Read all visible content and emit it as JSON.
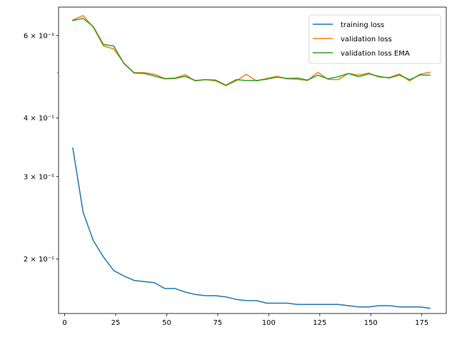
{
  "chart_data": {
    "type": "line",
    "title": "",
    "xlabel": "",
    "ylabel": "",
    "yscale": "log",
    "xlim": [
      -3,
      187
    ],
    "ylim": [
      0.153,
      0.69
    ],
    "xticks": [
      {
        "value": 0,
        "label": "0"
      },
      {
        "value": 25,
        "label": "25"
      },
      {
        "value": 50,
        "label": "50"
      },
      {
        "value": 75,
        "label": "75"
      },
      {
        "value": 100,
        "label": "100"
      },
      {
        "value": 125,
        "label": "125"
      },
      {
        "value": 150,
        "label": "150"
      },
      {
        "value": 175,
        "label": "175"
      }
    ],
    "yticks_major": [
      {
        "value": 0.2,
        "label": "2 × 10⁻¹"
      },
      {
        "value": 0.3,
        "label": "3 × 10⁻¹"
      },
      {
        "value": 0.4,
        "label": "4 × 10⁻¹"
      },
      {
        "value": 0.6,
        "label": "6 × 10⁻¹"
      }
    ],
    "yticks_minor": [
      0.5
    ],
    "grid": false,
    "legend_position": "top-right",
    "x": [
      4,
      9,
      14,
      19,
      24,
      29,
      34,
      39,
      44,
      49,
      54,
      59,
      64,
      69,
      74,
      79,
      84,
      89,
      94,
      99,
      104,
      109,
      114,
      119,
      124,
      129,
      134,
      139,
      144,
      149,
      154,
      159,
      164,
      169,
      174,
      179
    ],
    "series": [
      {
        "name": "training loss",
        "color": "#1f77b4",
        "values": [
          0.345,
          0.252,
          0.219,
          0.202,
          0.189,
          0.184,
          0.18,
          0.179,
          0.178,
          0.173,
          0.173,
          0.17,
          0.168,
          0.167,
          0.167,
          0.166,
          0.164,
          0.163,
          0.163,
          0.161,
          0.161,
          0.161,
          0.16,
          0.16,
          0.16,
          0.16,
          0.16,
          0.159,
          0.158,
          0.158,
          0.159,
          0.159,
          0.158,
          0.158,
          0.158,
          0.157
        ]
      },
      {
        "name": "validation loss",
        "color": "#ff7f0e",
        "values": [
          0.648,
          0.662,
          0.625,
          0.57,
          0.562,
          0.524,
          0.5,
          0.5,
          0.496,
          0.486,
          0.487,
          0.495,
          0.48,
          0.483,
          0.48,
          0.469,
          0.48,
          0.496,
          0.48,
          0.486,
          0.491,
          0.485,
          0.484,
          0.481,
          0.501,
          0.484,
          0.483,
          0.498,
          0.494,
          0.499,
          0.489,
          0.488,
          0.497,
          0.48,
          0.496,
          0.501
        ]
      },
      {
        "name": "validation loss EMA",
        "color": "#2ca02c",
        "values": [
          0.646,
          0.653,
          0.627,
          0.574,
          0.57,
          0.523,
          0.499,
          0.498,
          0.492,
          0.485,
          0.486,
          0.491,
          0.481,
          0.483,
          0.482,
          0.47,
          0.483,
          0.481,
          0.481,
          0.484,
          0.489,
          0.486,
          0.487,
          0.482,
          0.494,
          0.485,
          0.49,
          0.498,
          0.49,
          0.497,
          0.491,
          0.487,
          0.494,
          0.483,
          0.494,
          0.494
        ]
      }
    ]
  }
}
